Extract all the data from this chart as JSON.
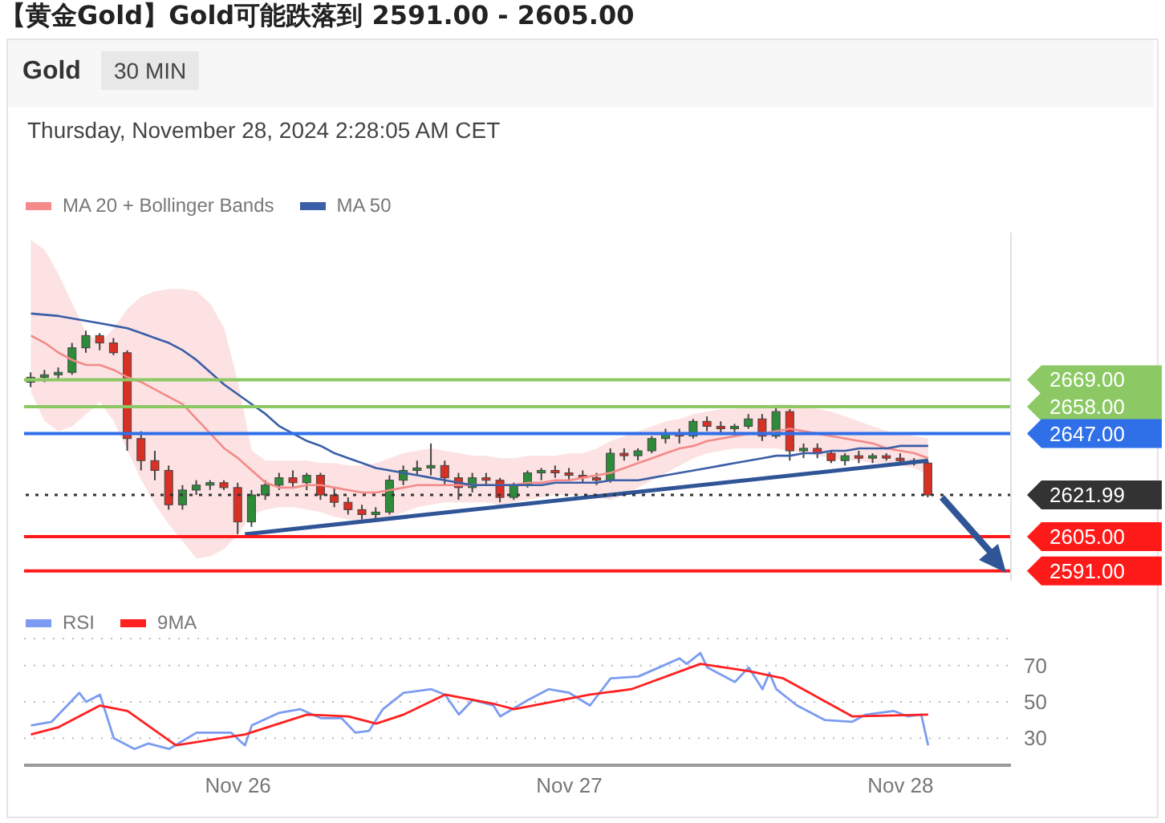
{
  "chart_data": [
    {
      "type": "candlestick",
      "title": "【黄金Gold】Gold可能跌落到 2591.00 - 2605.00",
      "subtitle": "Thursday, November 28, 2024 2:28:05 AM CET",
      "annotations": [
        "Gold",
        "30 MIN"
      ],
      "x": [
        "2024-11-25T09:00",
        "2024-11-25T10:00",
        "2024-11-25T11:00",
        "2024-11-25T12:00",
        "2024-11-25T13:00",
        "2024-11-25T14:00",
        "2024-11-25T15:00",
        "2024-11-25T16:00",
        "2024-11-25T17:00",
        "2024-11-25T18:00",
        "2024-11-25T19:00",
        "2024-11-25T20:00",
        "2024-11-25T21:00",
        "2024-11-25T22:00",
        "2024-11-25T23:00",
        "2024-11-26T00:00",
        "2024-11-26T01:00",
        "2024-11-26T02:00",
        "2024-11-26T03:00",
        "2024-11-26T04:00",
        "2024-11-26T05:00",
        "2024-11-26T06:00",
        "2024-11-26T07:00",
        "2024-11-26T08:00",
        "2024-11-26T09:00",
        "2024-11-26T10:00",
        "2024-11-26T11:00",
        "2024-11-26T12:00",
        "2024-11-26T13:00",
        "2024-11-26T14:00",
        "2024-11-26T15:00",
        "2024-11-26T16:00",
        "2024-11-26T17:00",
        "2024-11-26T18:00",
        "2024-11-26T19:00",
        "2024-11-26T20:00",
        "2024-11-26T21:00",
        "2024-11-26T22:00",
        "2024-11-26T23:00",
        "2024-11-27T00:00",
        "2024-11-27T01:00",
        "2024-11-27T02:00",
        "2024-11-27T03:00",
        "2024-11-27T04:00",
        "2024-11-27T05:00",
        "2024-11-27T06:00",
        "2024-11-27T07:00",
        "2024-11-27T08:00",
        "2024-11-27T09:00",
        "2024-11-27T10:00",
        "2024-11-27T11:00",
        "2024-11-27T12:00",
        "2024-11-27T13:00",
        "2024-11-27T14:00",
        "2024-11-27T15:00",
        "2024-11-27T16:00",
        "2024-11-27T17:00",
        "2024-11-27T18:00",
        "2024-11-27T19:00",
        "2024-11-27T20:00",
        "2024-11-27T21:00",
        "2024-11-27T22:00",
        "2024-11-27T23:00",
        "2024-11-28T00:00",
        "2024-11-28T01:00",
        "2024-11-28T02:00"
      ],
      "ohlc": [
        [
          2668,
          2672,
          2666,
          2670
        ],
        [
          2670,
          2673,
          2668,
          2671
        ],
        [
          2671,
          2674,
          2669,
          2672
        ],
        [
          2672,
          2684,
          2671,
          2682
        ],
        [
          2682,
          2689,
          2680,
          2687
        ],
        [
          2687,
          2688,
          2681,
          2684
        ],
        [
          2684,
          2686,
          2679,
          2680
        ],
        [
          2680,
          2681,
          2640,
          2645
        ],
        [
          2645,
          2648,
          2632,
          2636
        ],
        [
          2636,
          2640,
          2628,
          2632
        ],
        [
          2632,
          2634,
          2616,
          2618
        ],
        [
          2618,
          2626,
          2616,
          2624
        ],
        [
          2624,
          2628,
          2622,
          2626
        ],
        [
          2626,
          2628,
          2624,
          2627
        ],
        [
          2627,
          2628,
          2624,
          2625
        ],
        [
          2625,
          2627,
          2606,
          2611
        ],
        [
          2611,
          2624,
          2609,
          2622
        ],
        [
          2622,
          2628,
          2620,
          2626
        ],
        [
          2626,
          2631,
          2624,
          2629
        ],
        [
          2629,
          2632,
          2625,
          2627
        ],
        [
          2627,
          2631,
          2624,
          2630
        ],
        [
          2630,
          2631,
          2620,
          2622
        ],
        [
          2622,
          2625,
          2617,
          2619
        ],
        [
          2619,
          2621,
          2614,
          2616
        ],
        [
          2616,
          2618,
          2612,
          2614
        ],
        [
          2614,
          2617,
          2612,
          2615
        ],
        [
          2615,
          2630,
          2614,
          2628
        ],
        [
          2628,
          2634,
          2626,
          2632
        ],
        [
          2632,
          2636,
          2630,
          2633
        ],
        [
          2633,
          2643,
          2630,
          2634
        ],
        [
          2634,
          2636,
          2626,
          2629
        ],
        [
          2629,
          2631,
          2620,
          2625
        ],
        [
          2625,
          2631,
          2623,
          2629
        ],
        [
          2629,
          2631,
          2626,
          2628
        ],
        [
          2628,
          2629,
          2619,
          2621
        ],
        [
          2621,
          2627,
          2620,
          2626
        ],
        [
          2626,
          2632,
          2625,
          2631
        ],
        [
          2631,
          2633,
          2628,
          2632
        ],
        [
          2632,
          2634,
          2629,
          2631
        ],
        [
          2631,
          2633,
          2628,
          2630
        ],
        [
          2630,
          2632,
          2627,
          2629
        ],
        [
          2629,
          2631,
          2626,
          2628
        ],
        [
          2628,
          2641,
          2627,
          2639
        ],
        [
          2639,
          2641,
          2636,
          2638
        ],
        [
          2638,
          2641,
          2636,
          2640
        ],
        [
          2640,
          2646,
          2639,
          2645
        ],
        [
          2645,
          2649,
          2643,
          2647
        ],
        [
          2647,
          2649,
          2643,
          2646
        ],
        [
          2646,
          2653,
          2645,
          2652
        ],
        [
          2652,
          2654,
          2648,
          2650
        ],
        [
          2650,
          2652,
          2647,
          2649
        ],
        [
          2649,
          2651,
          2646,
          2650
        ],
        [
          2650,
          2655,
          2649,
          2653
        ],
        [
          2653,
          2655,
          2644,
          2646
        ],
        [
          2646,
          2658,
          2645,
          2656
        ],
        [
          2656,
          2657,
          2636,
          2640
        ],
        [
          2640,
          2643,
          2637,
          2641
        ],
        [
          2641,
          2643,
          2637,
          2639
        ],
        [
          2639,
          2640,
          2635,
          2636
        ],
        [
          2636,
          2639,
          2634,
          2638
        ],
        [
          2638,
          2640,
          2635,
          2637
        ],
        [
          2637,
          2639,
          2635,
          2638
        ],
        [
          2638,
          2639,
          2636,
          2637
        ],
        [
          2637,
          2639,
          2635,
          2636
        ],
        [
          2636,
          2637,
          2634,
          2635
        ],
        [
          2635,
          2636,
          2621,
          2621.99
        ]
      ],
      "series": [
        {
          "name": "MA 20 + Bollinger Bands",
          "type": "line",
          "color": "#f48a8a",
          "values": [
            2687,
            2684,
            2680,
            2677,
            2675,
            2675,
            2673,
            2670,
            2668,
            2665,
            2662,
            2659,
            2653,
            2647,
            2641,
            2637,
            2632,
            2627,
            2625,
            2625,
            2626,
            2626,
            2625,
            2624,
            2623,
            2623,
            2624,
            2625,
            2626,
            2626,
            2626,
            2626,
            2626,
            2626,
            2626,
            2626,
            2627,
            2627,
            2628,
            2628,
            2629,
            2630,
            2631,
            2633,
            2635,
            2637,
            2639,
            2641,
            2642,
            2644,
            2645,
            2646,
            2647,
            2647,
            2648,
            2649,
            2648,
            2647,
            2646,
            2645,
            2644,
            2643,
            2641,
            2640,
            2639,
            2637
          ],
          "lower": [
            2664,
            2652,
            2648,
            2650,
            2655,
            2660,
            2652,
            2640,
            2628,
            2618,
            2610,
            2603,
            2596,
            2597,
            2600,
            2606,
            2614,
            2616,
            2617,
            2617,
            2616,
            2615,
            2613,
            2612,
            2611,
            2611,
            2613,
            2615,
            2617,
            2618,
            2619,
            2619,
            2619,
            2619,
            2618,
            2619,
            2620,
            2621,
            2622,
            2622,
            2622,
            2621,
            2620,
            2622,
            2625,
            2628,
            2631,
            2634,
            2637,
            2639,
            2640,
            2641,
            2641,
            2641,
            2641,
            2640,
            2639,
            2638,
            2637,
            2636,
            2636,
            2635,
            2635,
            2634,
            2633,
            2630
          ],
          "upper": [
            2726,
            2722,
            2712,
            2700,
            2688,
            2684,
            2690,
            2698,
            2703,
            2705,
            2706,
            2706,
            2705,
            2700,
            2690,
            2668,
            2640,
            2636,
            2636,
            2636,
            2636,
            2635,
            2635,
            2634,
            2634,
            2635,
            2637,
            2639,
            2640,
            2641,
            2640,
            2639,
            2638,
            2638,
            2637,
            2637,
            2638,
            2638,
            2638,
            2639,
            2639,
            2641,
            2644,
            2646,
            2648,
            2650,
            2652,
            2653,
            2655,
            2656,
            2657,
            2657,
            2658,
            2658,
            2659,
            2659,
            2658,
            2657,
            2656,
            2654,
            2652,
            2650,
            2648,
            2647,
            2646,
            2645
          ]
        },
        {
          "name": "MA 50",
          "type": "line",
          "color": "#3a5ea8",
          "values": [
            2696,
            2695.5,
            2695,
            2694,
            2693,
            2692,
            2691,
            2690,
            2688,
            2686,
            2684,
            2681,
            2677,
            2672,
            2667,
            2663,
            2659,
            2655,
            2650,
            2647,
            2644,
            2642,
            2639,
            2637,
            2635,
            2633,
            2632,
            2631,
            2630,
            2629,
            2628,
            2627,
            2626,
            2626,
            2626,
            2626,
            2626,
            2626,
            2627,
            2627,
            2627,
            2627,
            2628,
            2628,
            2628,
            2629,
            2630,
            2631,
            2632,
            2633,
            2634,
            2635,
            2636,
            2637,
            2638,
            2638,
            2639,
            2639,
            2640,
            2640,
            2641,
            2641,
            2641,
            2642,
            2642,
            2642
          ]
        },
        {
          "type": "line",
          "color": "#2f5597",
          "x": [
            "2024-11-26T00:30",
            "2024-11-28T02:00"
          ],
          "values": [
            2606,
            2636
          ]
        }
      ],
      "ref_lines": [
        {
          "axis": "y",
          "value": 2669,
          "color": "#8cc864"
        },
        {
          "axis": "y",
          "value": 2658,
          "color": "#8cc864"
        },
        {
          "axis": "y",
          "value": 2647,
          "color": "#2f6fe8"
        },
        {
          "axis": "y",
          "value": 2621.99,
          "color": "#333333",
          "line_style": "dotted"
        },
        {
          "axis": "y",
          "value": 2605,
          "color": "#ff1a1a"
        },
        {
          "axis": "y",
          "value": 2591,
          "color": "#ff1a1a"
        }
      ],
      "xlim": [
        "2024-11-25T08:30",
        "2024-11-28T08:00"
      ],
      "ylim": [
        2587,
        2729
      ],
      "yticks": [
        {
          "value": 2669,
          "label": "2669.00"
        },
        {
          "value": 2658,
          "label": "2658.00"
        },
        {
          "value": 2647,
          "label": "2647.00"
        },
        {
          "value": 2621.99,
          "label": "2621.99"
        },
        {
          "value": 2605,
          "label": "2605.00"
        },
        {
          "value": 2591,
          "label": "2591.00"
        }
      ],
      "tick_labels": "y",
      "legend": "top left"
    },
    {
      "type": "line",
      "series": [
        {
          "name": "RSI",
          "color": "#7b9cf0",
          "x": [
            "2024-11-25T09:00",
            "2024-11-25T10:30",
            "2024-11-25T12:30",
            "2024-11-25T13:00",
            "2024-11-25T14:00",
            "2024-11-25T15:00",
            "2024-11-25T16:30",
            "2024-11-25T17:30",
            "2024-11-25T19:00",
            "2024-11-25T21:00",
            "2024-11-25T23:30",
            "2024-11-26T00:30",
            "2024-11-26T01:00",
            "2024-11-26T03:00",
            "2024-11-26T04:30",
            "2024-11-26T06:00",
            "2024-11-26T07:30",
            "2024-11-26T08:30",
            "2024-11-26T09:30",
            "2024-11-26T10:30",
            "2024-11-26T12:00",
            "2024-11-26T14:00",
            "2024-11-26T15:00",
            "2024-11-26T16:00",
            "2024-11-26T17:00",
            "2024-11-26T18:30",
            "2024-11-26T19:00",
            "2024-11-26T21:00",
            "2024-11-26T22:30",
            "2024-11-27T00:00",
            "2024-11-27T01:30",
            "2024-11-27T03:00",
            "2024-11-27T05:00",
            "2024-11-27T06:30",
            "2024-11-27T08:00",
            "2024-11-27T08:30",
            "2024-11-27T09:30",
            "2024-11-27T10:00",
            "2024-11-27T12:00",
            "2024-11-27T13:00",
            "2024-11-27T14:00",
            "2024-11-27T14:30",
            "2024-11-27T15:00",
            "2024-11-27T16:30",
            "2024-11-27T18:30",
            "2024-11-27T20:30",
            "2024-11-27T21:30",
            "2024-11-27T23:30",
            "2024-11-28T00:30",
            "2024-11-28T01:30",
            "2024-11-28T02:00"
          ],
          "values": [
            37,
            39,
            55,
            50,
            54,
            30,
            24,
            27,
            24,
            33,
            33,
            26,
            37,
            44,
            46,
            41,
            41,
            33,
            34,
            46,
            55,
            57,
            54,
            43,
            51,
            48,
            42,
            51,
            57,
            55,
            48,
            63,
            64,
            69,
            74,
            71,
            77,
            69,
            61,
            69,
            57,
            66,
            57,
            48,
            40,
            39,
            43,
            45,
            42,
            43,
            26
          ]
        },
        {
          "name": "9MA",
          "color": "#ff2020",
          "x": [
            "2024-11-25T09:00",
            "2024-11-25T11:00",
            "2024-11-25T14:00",
            "2024-11-25T16:00",
            "2024-11-25T19:30",
            "2024-11-26T00:30",
            "2024-11-26T05:00",
            "2024-11-26T08:00",
            "2024-11-26T10:00",
            "2024-11-26T12:00",
            "2024-11-26T15:00",
            "2024-11-26T18:30",
            "2024-11-26T20:00",
            "2024-11-27T01:30",
            "2024-11-27T04:30",
            "2024-11-27T09:30",
            "2024-11-27T13:00",
            "2024-11-27T15:30",
            "2024-11-27T20:30",
            "2024-11-28T02:00"
          ],
          "values": [
            32,
            36,
            48,
            45,
            26,
            32,
            43,
            42,
            38,
            43,
            54,
            49,
            46,
            54,
            57,
            71,
            67,
            63,
            42,
            43
          ]
        }
      ],
      "xlim": [
        "2024-11-25T08:30",
        "2024-11-28T08:00"
      ],
      "xticks": [
        {
          "value": "2024-11-26",
          "label": "Nov 26"
        },
        {
          "value": "2024-11-27",
          "label": "Nov 27"
        },
        {
          "value": "2024-11-28",
          "label": "Nov 28"
        }
      ],
      "ylim": [
        15,
        85
      ],
      "yticks": [
        30,
        50,
        70
      ],
      "grid": "y",
      "legend": "top left"
    }
  ]
}
